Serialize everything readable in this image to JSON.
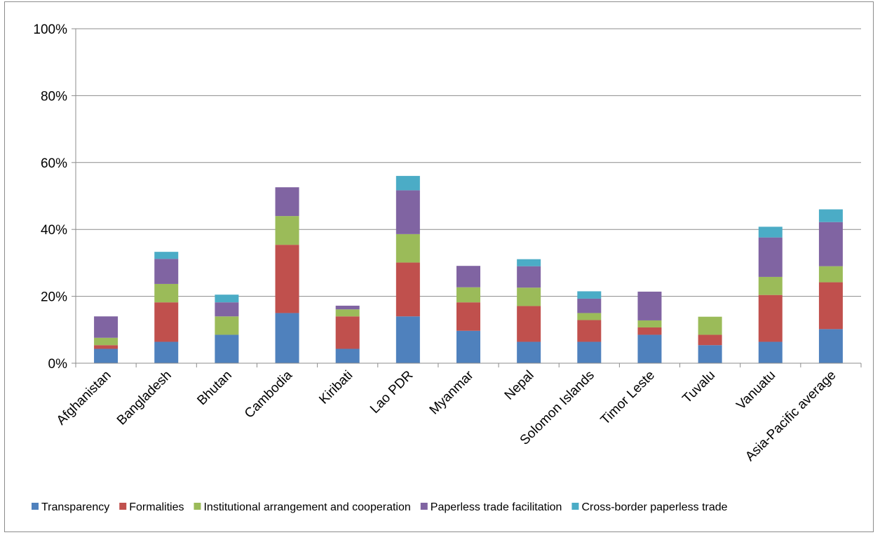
{
  "chart_data": {
    "type": "bar",
    "stacked": true,
    "title": "",
    "xlabel": "",
    "ylabel": "",
    "ylim": [
      0,
      100
    ],
    "y_ticks": [
      "0%",
      "20%",
      "40%",
      "60%",
      "80%",
      "100%"
    ],
    "grid": true,
    "legend_position": "bottom",
    "categories": [
      "Afghanistan",
      "Bangladesh",
      "Bhutan",
      "Cambodia",
      "Kiribati",
      "Lao PDR",
      "Myanmar",
      "Nepal",
      "Solomon Islands",
      "Timor Leste",
      "Tuvalu",
      "Vanuatu",
      "Asia-Pacific average"
    ],
    "series": [
      {
        "name": "Transparency",
        "color": "#4f81bd",
        "values": [
          4.3,
          6.4,
          8.5,
          15.0,
          4.3,
          14.0,
          9.7,
          6.4,
          6.4,
          8.5,
          5.4,
          6.4,
          10.2
        ]
      },
      {
        "name": "Formalities",
        "color": "#c0504d",
        "values": [
          1.1,
          11.8,
          0,
          20.4,
          9.7,
          16.1,
          8.5,
          10.7,
          6.5,
          2.2,
          3.1,
          14.0,
          14.0
        ]
      },
      {
        "name": "Institutional arrangement and cooperation",
        "color": "#9bbb59",
        "values": [
          2.2,
          5.5,
          5.5,
          8.6,
          2.1,
          8.5,
          4.5,
          5.5,
          2.1,
          2.1,
          5.4,
          5.4,
          4.8
        ]
      },
      {
        "name": "Paperless trade facilitation",
        "color": "#8064a2",
        "values": [
          6.4,
          7.5,
          4.2,
          8.6,
          1.1,
          13.1,
          6.4,
          6.4,
          4.3,
          8.6,
          0,
          11.8,
          13.2
        ]
      },
      {
        "name": "Cross-border paperless trade",
        "color": "#4bacc6",
        "values": [
          0,
          2.1,
          2.3,
          0,
          0,
          4.3,
          0,
          2.1,
          2.2,
          0,
          0,
          3.2,
          3.8
        ]
      }
    ]
  }
}
